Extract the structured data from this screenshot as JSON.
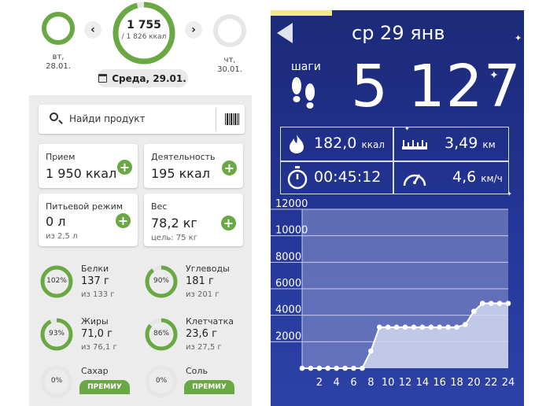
{
  "left": {
    "prev_day": {
      "weekday": "вт,",
      "date": "28.01."
    },
    "next_day": {
      "weekday": "чт,",
      "date": "30.01."
    },
    "nav_prev": "‹",
    "nav_next": "›",
    "calories": {
      "value": "1 755",
      "goal": "/ 1 826 ккал",
      "progress": 0.96
    },
    "date_pill": "Среда, 29.01.",
    "search_placeholder": "Найди продукт",
    "cards": {
      "intake": {
        "title": "Прием",
        "value": "1 950 ккал"
      },
      "activity": {
        "title": "Деятельность",
        "value": "195 ккал"
      },
      "water": {
        "title": "Питьевой режим",
        "value": "0 л",
        "sub": "из 2,5 л"
      },
      "weight": {
        "title": "Вес",
        "value": "78,2 кг",
        "sub": "цель: 75 кг"
      }
    },
    "nutrients": [
      {
        "name": "Белки",
        "pct": "102%",
        "value": "137 г",
        "goal": "из 133 г",
        "progress": 1.0
      },
      {
        "name": "Углеводы",
        "pct": "90%",
        "value": "181 г",
        "goal": "из 201 г",
        "progress": 0.9
      },
      {
        "name": "Жиры",
        "pct": "93%",
        "value": "71,0 г",
        "goal": "из 76,1 г",
        "progress": 0.93
      },
      {
        "name": "Клетчатка",
        "pct": "86%",
        "value": "23,6 г",
        "goal": "из 27,5 г",
        "progress": 0.86
      },
      {
        "name": "Сахар",
        "pct": "0%",
        "premium": "ПРЕМИУ",
        "progress": 0
      },
      {
        "name": "Соль",
        "pct": "0%",
        "premium": "ПРЕМИУ",
        "progress": 0
      }
    ],
    "colors": {
      "accent": "#6aa843",
      "ring_bg": "#e6e6e6"
    }
  },
  "right": {
    "date_title": "ср 29 янв",
    "steps_label": "шаги",
    "steps_value": "5 127",
    "stats": {
      "calories": {
        "value": "182,0",
        "unit": "ккал"
      },
      "distance": {
        "value": "3,49",
        "unit": "км"
      },
      "duration": {
        "value": "00:45:12"
      },
      "speed": {
        "value": "4,6",
        "unit": "км/ч"
      }
    },
    "icons": [
      "footprints-icon",
      "flame-icon",
      "ruler-icon",
      "stopwatch-icon",
      "speedometer-icon",
      "back-arrow-icon"
    ]
  },
  "chart_data": {
    "type": "line",
    "title": "",
    "xlabel": "",
    "ylabel": "",
    "y_ticks": [
      "2000",
      "4000",
      "6000",
      "8000",
      "10000",
      "12000"
    ],
    "x_ticks": [
      "2",
      "4",
      "6",
      "8",
      "10",
      "12",
      "14",
      "16",
      "18",
      "20",
      "22",
      "24"
    ],
    "ylim": [
      0,
      12000
    ],
    "xlim": [
      0,
      24
    ],
    "grid": true,
    "series": [
      {
        "x": [
          0,
          1,
          2,
          3,
          4,
          5,
          6,
          7,
          8,
          9,
          10,
          11,
          12,
          13,
          14,
          15,
          16,
          17,
          18,
          19,
          20,
          21,
          22,
          23,
          24
        ],
        "values": [
          0,
          0,
          0,
          0,
          0,
          0,
          0,
          0,
          1300,
          3100,
          3100,
          3100,
          3100,
          3100,
          3100,
          3100,
          3100,
          3100,
          3100,
          3300,
          4300,
          4900,
          4900,
          4900,
          4900
        ]
      }
    ]
  }
}
